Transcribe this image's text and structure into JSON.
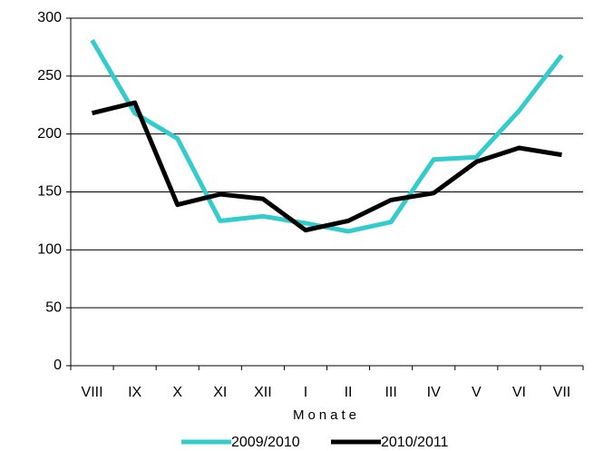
{
  "chart_data": {
    "type": "line",
    "categories": [
      "VIII",
      "IX",
      "X",
      "XI",
      "XII",
      "I",
      "II",
      "III",
      "IV",
      "V",
      "VI",
      "VII"
    ],
    "x_label": "Monate",
    "series": [
      {
        "name": "2009/2010",
        "color": "#33cccc",
        "values": [
          281,
          218,
          196,
          125,
          129,
          123,
          116,
          124,
          178,
          180,
          220,
          268
        ]
      },
      {
        "name": "2010/2011",
        "color": "#000000",
        "values": [
          218,
          227,
          139,
          148,
          144,
          117,
          125,
          143,
          149,
          176,
          188,
          182
        ]
      }
    ],
    "ylim": [
      0,
      300
    ],
    "yticks": [
      0,
      50,
      100,
      150,
      200,
      250,
      300
    ],
    "grid": true,
    "legend": "bottom"
  }
}
